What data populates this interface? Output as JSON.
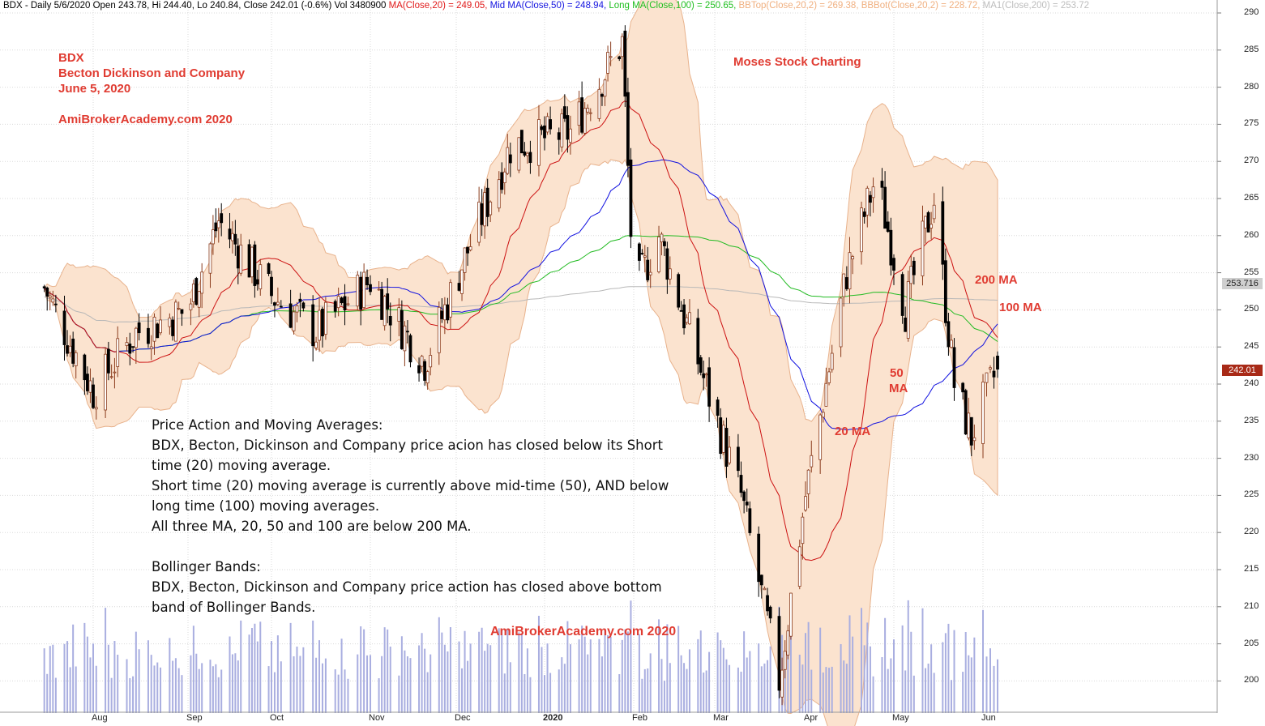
{
  "header": {
    "symbol_info": "BDX - Daily 5/6/2020 Open 243.78, Hi 244.40, Lo 240.84, Close 242.01 (-0.6%) Vol 3480900",
    "ma20": "MA(Close,20) = 249.05,",
    "ma50": "Mid MA(Close,50) = 248.94,",
    "ma100": "Long MA(Close,100) = 250.65,",
    "bbtop": "BBTop(Close,20,2) = 269.38,",
    "bbbot": "BBBot(Close,20,2) = 228.72,",
    "ma200": "MA1(Close,200) = 253.72"
  },
  "colors": {
    "ma20": "#cc1111",
    "ma50": "#1010e0",
    "ma100": "#22bb22",
    "ma200": "#b8b8b8",
    "bb": "#e8b28c",
    "bbfill": "#fbe3cf",
    "candle_up": "#ffffff",
    "candle_down": "#000000",
    "volume": "#a9aee0",
    "annotation": "#e03c32"
  },
  "annotations": {
    "ticker": "BDX",
    "company": "Becton Dickinson and Company",
    "date": "June 5, 2020",
    "site_top": "AmiBrokerAcademy.com  2020",
    "moses": "Moses Stock Charting",
    "site_bottom": "AmiBrokerAcademy.com  2020",
    "label_200ma": "200 MA",
    "label_100ma": "100 MA",
    "label_50ma_a": "50",
    "label_50ma_b": "MA",
    "label_20ma": "20 MA"
  },
  "notes": [
    "Price Action and Moving Averages:",
    "BDX, Becton, Dickinson and Company price acion has closed below its Short",
    "time (20) moving average.",
    "Short time (20) moving average is currently above mid-time (50), AND below",
    "long time (100) moving averages.",
    "All three MA, 20, 50 and 100 are below 200 MA.",
    "",
    "Bollinger Bands:",
    "BDX, Becton, Dickinson and Company price action has closed above bottom",
    "band of Bollinger Bands."
  ],
  "price_tags": {
    "ma200_value": "253.716",
    "close_value": "242.01"
  },
  "chart_data": {
    "type": "candlestick",
    "ylim": [
      196,
      291
    ],
    "y_ticks": [
      200,
      205,
      210,
      215,
      220,
      225,
      230,
      235,
      240,
      245,
      250,
      255,
      260,
      265,
      270,
      275,
      280,
      285,
      290
    ],
    "x_labels": [
      "Aug",
      "Sep",
      "Oct",
      "Nov",
      "Dec",
      "2020",
      "Feb",
      "Mar",
      "Apr",
      "May",
      "Jun"
    ],
    "grid": true,
    "close_points": [
      {
        "x": "Jul 15, 2019",
        "close": 253
      },
      {
        "x": "Aug 1, 2019",
        "close": 239
      },
      {
        "x": "Aug 15, 2019",
        "close": 247
      },
      {
        "x": "Sep 1, 2019",
        "close": 250
      },
      {
        "x": "Sep 12, 2019",
        "close": 262
      },
      {
        "x": "Oct 1, 2019",
        "close": 252
      },
      {
        "x": "Oct 15, 2019",
        "close": 247
      },
      {
        "x": "Nov 1, 2019",
        "close": 254
      },
      {
        "x": "Nov 20, 2019",
        "close": 243
      },
      {
        "x": "Dec 5, 2019",
        "close": 258
      },
      {
        "x": "Dec 20, 2019",
        "close": 272
      },
      {
        "x": "Jan 10, 2020",
        "close": 274
      },
      {
        "x": "Jan 28, 2020",
        "close": 286
      },
      {
        "x": "Feb 1, 2020",
        "close": 252
      },
      {
        "x": "Feb 10, 2020",
        "close": 260
      },
      {
        "x": "Feb 25, 2020",
        "close": 242
      },
      {
        "x": "Mar 10, 2020",
        "close": 225
      },
      {
        "x": "Mar 23, 2020",
        "close": 200
      },
      {
        "x": "Apr 1, 2020",
        "close": 225
      },
      {
        "x": "Apr 15, 2020",
        "close": 255
      },
      {
        "x": "Apr 25, 2020",
        "close": 268
      },
      {
        "x": "May 5, 2020",
        "close": 250
      },
      {
        "x": "May 15, 2020",
        "close": 265
      },
      {
        "x": "May 22, 2020",
        "close": 240
      },
      {
        "x": "May 28, 2020",
        "close": 233
      },
      {
        "x": "Jun 5, 2020",
        "close": 242.01
      }
    ],
    "series": [
      {
        "name": "MA(Close,20)",
        "last": 249.05
      },
      {
        "name": "Mid MA(Close,50)",
        "last": 248.94
      },
      {
        "name": "Long MA(Close,100)",
        "last": 250.65
      },
      {
        "name": "BBTop(Close,20,2)",
        "last": 269.38
      },
      {
        "name": "BBBot(Close,20,2)",
        "last": 228.72
      },
      {
        "name": "MA1(Close,200)",
        "last": 253.72
      }
    ],
    "volume": {
      "unit": "shares",
      "last": 3480900
    }
  }
}
